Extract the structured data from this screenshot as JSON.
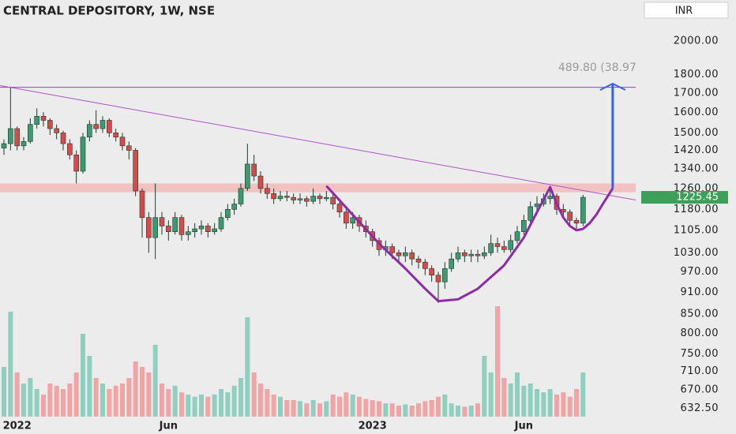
{
  "chart_data": {
    "type": "candlestick",
    "title": "CENTRAL DEPOSITORY, 1W, NSE",
    "currency": "INR",
    "log_scale": true,
    "ylim": [
      613,
      2275
    ],
    "xlim": [
      -0.6,
      96
    ],
    "yticks": [
      {
        "value": 2000,
        "label": "2000.00"
      },
      {
        "value": 1800,
        "label": "1800.00"
      },
      {
        "value": 1700,
        "label": "1700.00"
      },
      {
        "value": 1600,
        "label": "1600.00"
      },
      {
        "value": 1500,
        "label": "1500.00"
      },
      {
        "value": 1420,
        "label": "1420.00"
      },
      {
        "value": 1340,
        "label": "1340.00"
      },
      {
        "value": 1260,
        "label": "1260.00"
      },
      {
        "value": 1180,
        "label": "1180.00"
      },
      {
        "value": 1105,
        "label": "1105.00"
      },
      {
        "value": 1030,
        "label": "1030.00"
      },
      {
        "value": 970,
        "label": "970.00"
      },
      {
        "value": 910,
        "label": "910.00"
      },
      {
        "value": 850,
        "label": "850.00"
      },
      {
        "value": 800,
        "label": "800.00"
      },
      {
        "value": 750,
        "label": "750.00"
      },
      {
        "value": 710,
        "label": "710.00"
      },
      {
        "value": 670,
        "label": "670.00"
      },
      {
        "value": 632.5,
        "label": "632.50"
      }
    ],
    "xticks": [
      {
        "value": 2,
        "label": "2022"
      },
      {
        "value": 25,
        "label": "Jun"
      },
      {
        "value": 56,
        "label": "2023"
      },
      {
        "value": 79,
        "label": "Jun"
      }
    ],
    "up_color": "#3d9970",
    "down_color": "#d84a4a",
    "open": [
      1430,
      1450,
      1520,
      1440,
      1460,
      1540,
      1580,
      1560,
      1520,
      1500,
      1450,
      1400,
      1330,
      1480,
      1540,
      1520,
      1560,
      1500,
      1480,
      1440,
      1420,
      1250,
      1150,
      1080,
      1150,
      1120,
      1100,
      1150,
      1090,
      1100,
      1110,
      1120,
      1100,
      1110,
      1150,
      1180,
      1200,
      1260,
      1360,
      1310,
      1260,
      1240,
      1220,
      1230,
      1225,
      1215,
      1220,
      1210,
      1230,
      1220,
      1225,
      1200,
      1170,
      1130,
      1150,
      1120,
      1100,
      1070,
      1040,
      1050,
      1030,
      1020,
      1030,
      1010,
      1000,
      980,
      960,
      940,
      980,
      1010,
      1030,
      1020,
      1025,
      1020,
      1030,
      1060,
      1050,
      1040,
      1070,
      1100,
      1140,
      1190,
      1200,
      1220,
      1230,
      1180,
      1170,
      1140,
      1130
    ],
    "high": [
      1470,
      1730,
      1530,
      1480,
      1570,
      1620,
      1600,
      1570,
      1540,
      1510,
      1470,
      1420,
      1500,
      1560,
      1610,
      1580,
      1570,
      1520,
      1500,
      1460,
      1430,
      1260,
      1170,
      1280,
      1170,
      1140,
      1170,
      1160,
      1120,
      1130,
      1140,
      1130,
      1130,
      1170,
      1200,
      1220,
      1280,
      1450,
      1400,
      1330,
      1280,
      1260,
      1250,
      1250,
      1240,
      1240,
      1230,
      1260,
      1240,
      1250,
      1240,
      1210,
      1180,
      1170,
      1160,
      1140,
      1110,
      1080,
      1070,
      1060,
      1040,
      1050,
      1040,
      1020,
      1010,
      990,
      970,
      1000,
      1030,
      1050,
      1040,
      1040,
      1040,
      1050,
      1090,
      1080,
      1070,
      1090,
      1120,
      1160,
      1210,
      1230,
      1240,
      1270,
      1240,
      1200,
      1180,
      1150,
      1235
    ],
    "low": [
      1400,
      1420,
      1420,
      1420,
      1450,
      1520,
      1530,
      1490,
      1470,
      1420,
      1380,
      1280,
      1320,
      1460,
      1500,
      1500,
      1480,
      1460,
      1420,
      1380,
      1230,
      1080,
      1030,
      1010,
      1090,
      1070,
      1090,
      1070,
      1070,
      1080,
      1090,
      1080,
      1090,
      1100,
      1140,
      1160,
      1190,
      1250,
      1290,
      1240,
      1220,
      1200,
      1210,
      1210,
      1200,
      1200,
      1190,
      1200,
      1200,
      1210,
      1180,
      1150,
      1110,
      1110,
      1100,
      1080,
      1050,
      1020,
      1020,
      1010,
      1000,
      1000,
      990,
      980,
      960,
      940,
      880,
      920,
      970,
      1000,
      1000,
      1000,
      1000,
      1010,
      1020,
      1030,
      1030,
      1030,
      1060,
      1090,
      1130,
      1170,
      1190,
      1200,
      1160,
      1150,
      1120,
      1110,
      1120
    ],
    "close": [
      1450,
      1520,
      1440,
      1460,
      1540,
      1580,
      1560,
      1520,
      1500,
      1450,
      1400,
      1330,
      1480,
      1540,
      1520,
      1560,
      1500,
      1480,
      1440,
      1420,
      1250,
      1150,
      1080,
      1150,
      1120,
      1100,
      1150,
      1090,
      1100,
      1110,
      1120,
      1100,
      1110,
      1150,
      1180,
      1200,
      1260,
      1360,
      1310,
      1260,
      1240,
      1220,
      1230,
      1225,
      1215,
      1220,
      1210,
      1230,
      1220,
      1225,
      1200,
      1170,
      1130,
      1150,
      1120,
      1100,
      1070,
      1040,
      1050,
      1030,
      1020,
      1030,
      1010,
      1000,
      980,
      960,
      940,
      980,
      1010,
      1030,
      1020,
      1025,
      1020,
      1030,
      1060,
      1050,
      1040,
      1070,
      1100,
      1140,
      1190,
      1200,
      1220,
      1230,
      1180,
      1170,
      1140,
      1130,
      1225.45
    ],
    "volume": {
      "ylim": [
        0,
        100
      ],
      "up_color": "#8fcfbf",
      "down_color": "#f2a3a3",
      "values": [
        45,
        95,
        40,
        30,
        35,
        25,
        20,
        30,
        28,
        25,
        30,
        40,
        75,
        55,
        35,
        30,
        25,
        28,
        30,
        35,
        50,
        45,
        40,
        65,
        30,
        25,
        28,
        22,
        20,
        18,
        20,
        18,
        20,
        25,
        22,
        28,
        35,
        90,
        40,
        30,
        25,
        20,
        18,
        15,
        15,
        14,
        12,
        15,
        12,
        14,
        20,
        18,
        22,
        20,
        18,
        16,
        15,
        14,
        12,
        12,
        10,
        11,
        10,
        12,
        14,
        15,
        18,
        20,
        12,
        10,
        9,
        10,
        12,
        55,
        40,
        100,
        35,
        30,
        40,
        28,
        30,
        25,
        22,
        25,
        20,
        22,
        18,
        25,
        40
      ]
    },
    "resistance": 1730,
    "zone": [
      1245,
      1280
    ],
    "trendline": {
      "x": [
        -0.6,
        96
      ],
      "y": [
        1740,
        1215
      ]
    },
    "cup": {
      "x": [
        49,
        53,
        57,
        61,
        64,
        66,
        69,
        72,
        76,
        79,
        81,
        83,
        84,
        85,
        86,
        87,
        88,
        89,
        90,
        91,
        92.5
      ],
      "y": [
        1270,
        1160,
        1060,
        980,
        920,
        885,
        890,
        920,
        990,
        1080,
        1170,
        1265,
        1200,
        1150,
        1120,
        1105,
        1110,
        1130,
        1160,
        1200,
        1260
      ]
    },
    "target": {
      "x": 92.5,
      "from": 1260,
      "to": 1750,
      "label": "489.80 (38.97"
    }
  }
}
